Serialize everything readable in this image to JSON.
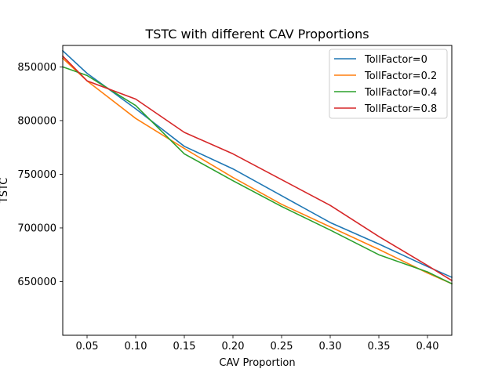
{
  "chart_data": {
    "type": "line",
    "title": "TSTC with different CAV Proportions",
    "xlabel": "CAV Proportion",
    "ylabel": "TSTC",
    "xlim": [
      0.025,
      0.425
    ],
    "ylim": [
      600000,
      870000
    ],
    "xticks": [
      0.05,
      0.1,
      0.15,
      0.2,
      0.25,
      0.3,
      0.35,
      0.4
    ],
    "xtick_labels": [
      "0.05",
      "0.10",
      "0.15",
      "0.20",
      "0.25",
      "0.30",
      "0.35",
      "0.40"
    ],
    "yticks": [
      650000,
      700000,
      750000,
      800000,
      850000
    ],
    "ytick_labels": [
      "650000",
      "700000",
      "750000",
      "800000",
      "850000"
    ],
    "grid": false,
    "legend_position": "top-right",
    "x": [
      0.025,
      0.05,
      0.1,
      0.15,
      0.2,
      0.25,
      0.3,
      0.35,
      0.4,
      0.425
    ],
    "series": [
      {
        "name": "TollFactor=0",
        "color": "#1f77b4",
        "values": [
          865000,
          844000,
          811000,
          776000,
          755000,
          730000,
          705000,
          685000,
          664000,
          654000
        ]
      },
      {
        "name": "TollFactor=0.2",
        "color": "#ff7f0e",
        "values": [
          858000,
          837000,
          802000,
          774000,
          747000,
          722000,
          701000,
          680000,
          658000,
          648000
        ]
      },
      {
        "name": "TollFactor=0.4",
        "color": "#2ca02c",
        "values": [
          850000,
          842000,
          814000,
          769000,
          744000,
          720000,
          698000,
          675000,
          659000,
          648000
        ]
      },
      {
        "name": "TollFactor=0.8",
        "color": "#d62728",
        "values": [
          860000,
          837000,
          820000,
          789000,
          769000,
          745000,
          721000,
          692000,
          665000,
          651000
        ]
      }
    ]
  }
}
